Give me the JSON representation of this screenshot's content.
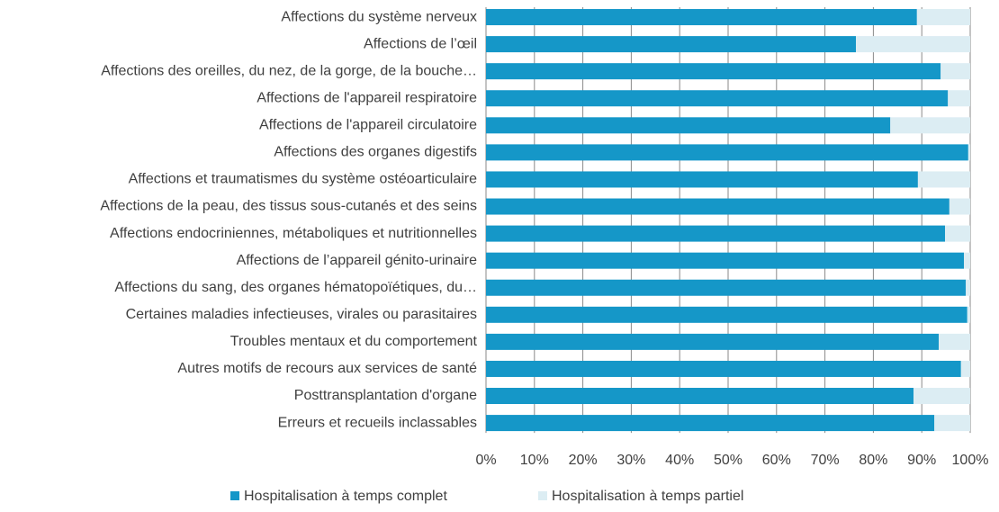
{
  "chart_data": {
    "type": "stacked-bar-horizontal",
    "categories": [
      "Affections du système nerveux",
      "Affections de l’œil",
      "Affections des oreilles, du nez, de la gorge, de la bouche…",
      "Affections de l'appareil respiratoire",
      "Affections de l'appareil circulatoire",
      "Affections des organes digestifs",
      "Affections et traumatismes du système ostéoarticulaire",
      "Affections de la peau, des tissus sous-cutanés et des seins",
      "Affections endocriniennes, métaboliques et nutritionnelles",
      "Affections de l’appareil génito-urinaire",
      "Affections du sang, des organes hématopoïétiques, du…",
      "Certaines maladies infectieuses, virales ou parasitaires",
      "Troubles mentaux et du comportement",
      "Autres motifs de recours aux services de santé",
      "Posttransplantation d'organe",
      "Erreurs et recueils inclassables"
    ],
    "series": [
      {
        "name": "Hospitalisation à temps complet",
        "color": "#1597c8",
        "values": [
          89.0,
          76.4,
          93.9,
          95.4,
          83.5,
          99.6,
          89.2,
          95.7,
          94.8,
          98.7,
          99.1,
          99.4,
          93.5,
          98.1,
          88.3,
          92.6
        ]
      },
      {
        "name": "Hospitalisation à temps partiel",
        "color": "#dcedf3",
        "values": [
          11.0,
          23.6,
          6.1,
          4.6,
          16.5,
          0.4,
          10.8,
          4.3,
          5.2,
          1.3,
          0.9,
          0.6,
          6.5,
          1.9,
          11.7,
          7.4
        ]
      }
    ],
    "xlim": [
      0,
      100
    ],
    "xticks": [
      {
        "value": 0,
        "label": "0%"
      },
      {
        "value": 10,
        "label": "10%"
      },
      {
        "value": 20,
        "label": "20%"
      },
      {
        "value": 30,
        "label": "30%"
      },
      {
        "value": 40,
        "label": "40%"
      },
      {
        "value": 50,
        "label": "50%"
      },
      {
        "value": 60,
        "label": "60%"
      },
      {
        "value": 70,
        "label": "70%"
      },
      {
        "value": 80,
        "label": "80%"
      },
      {
        "value": 90,
        "label": "90%"
      },
      {
        "value": 100,
        "label": "100%"
      }
    ],
    "grid": true,
    "legend": "bottom"
  }
}
